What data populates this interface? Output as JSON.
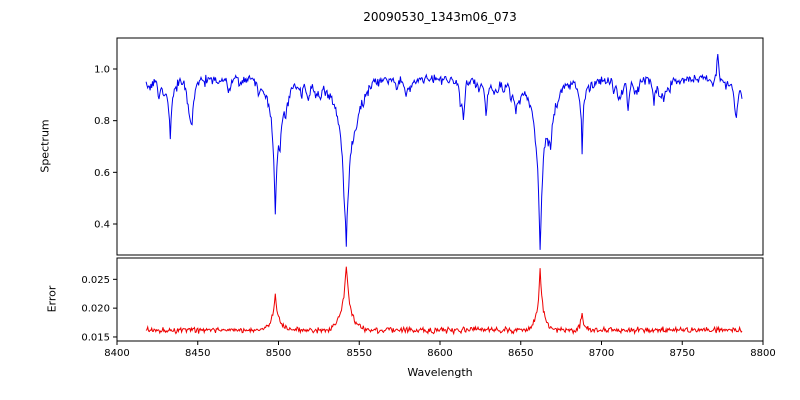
{
  "chart_data": {
    "type": "line",
    "title": "20090530_1343m06_073",
    "xlabel": "Wavelength",
    "x_axis_range": [
      8400,
      8800
    ],
    "x_data_range": [
      8418,
      8787
    ],
    "x_ticks": [
      {
        "value": 8400,
        "label": "8400"
      },
      {
        "value": 8450,
        "label": "8450"
      },
      {
        "value": 8500,
        "label": "8500"
      },
      {
        "value": 8550,
        "label": "8550"
      },
      {
        "value": 8600,
        "label": "8600"
      },
      {
        "value": 8650,
        "label": "8650"
      },
      {
        "value": 8700,
        "label": "8700"
      },
      {
        "value": 8750,
        "label": "8750"
      },
      {
        "value": 8800,
        "label": "8800"
      }
    ],
    "seed": 20090530,
    "grid": false,
    "legend": false,
    "panels": [
      {
        "name": "spectrum",
        "ylabel": "Spectrum",
        "color": "#0000ee",
        "ylim": [
          0.28,
          1.12
        ],
        "y_ticks": [
          {
            "value": 1.0,
            "label": "1.0"
          },
          {
            "value": 0.8,
            "label": "0.8"
          },
          {
            "value": 0.6,
            "label": "0.6"
          },
          {
            "value": 0.4,
            "label": "0.4"
          }
        ],
        "baseline": 0.96,
        "noise": 0.018,
        "absorption_lines": [
          {
            "center": 8498,
            "depth": 0.52,
            "width": 1.5
          },
          {
            "center": 8542,
            "depth": 0.64,
            "width": 2.4
          },
          {
            "center": 8662,
            "depth": 0.63,
            "width": 2.0
          },
          {
            "center": 8433,
            "depth": 0.23,
            "width": 1.0
          },
          {
            "center": 8688,
            "depth": 0.28,
            "width": 0.8
          }
        ],
        "spikes": [
          {
            "center": 8772,
            "height": 0.1,
            "width": 0.8
          },
          {
            "center": 8505,
            "height": 0.05,
            "width": 0.6
          }
        ],
        "minor_line_count": 70
      },
      {
        "name": "error",
        "ylabel": "Error",
        "color": "#ee0000",
        "ylim": [
          0.0143,
          0.0287
        ],
        "y_ticks": [
          {
            "value": 0.025,
            "label": "0.025"
          },
          {
            "value": 0.02,
            "label": "0.020"
          },
          {
            "value": 0.015,
            "label": "0.015"
          }
        ],
        "baseline": 0.0162,
        "noise": 0.0005,
        "peaks": [
          {
            "center": 8498,
            "height": 0.0065,
            "width": 1.3
          },
          {
            "center": 8542,
            "height": 0.0112,
            "width": 1.8
          },
          {
            "center": 8662,
            "height": 0.0108,
            "width": 1.2
          },
          {
            "center": 8688,
            "height": 0.003,
            "width": 0.8
          }
        ]
      }
    ]
  }
}
